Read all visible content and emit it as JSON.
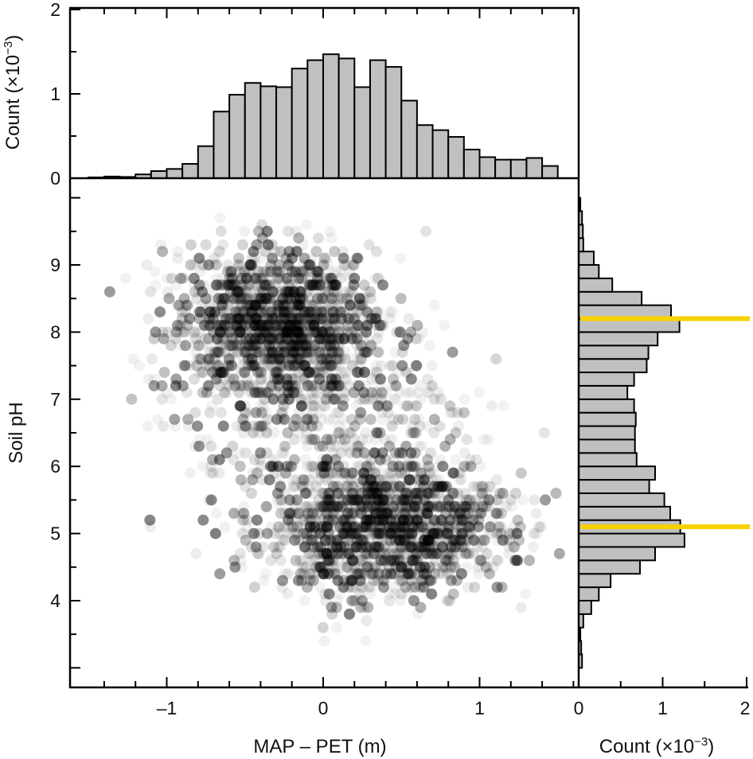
{
  "chart_data": [
    {
      "type": "scatter",
      "title": "",
      "xlabel": "MAP – PET (m)",
      "ylabel": "Soil pH",
      "xlim": [
        -1.62,
        1.63
      ],
      "ylim": [
        2.71,
        10.29
      ],
      "x_ticks": [
        "-1",
        "0",
        "1"
      ],
      "x_tick_values": [
        -1,
        0,
        1
      ],
      "y_ticks": [
        "9",
        "8",
        "7",
        "6",
        "5",
        "4"
      ],
      "y_tick_values": [
        9,
        8,
        7,
        6,
        5,
        4
      ],
      "point_color": "#000000",
      "ph_resolution": 0.1,
      "n_points": 3200,
      "clusters": [
        {
          "x_mean": -0.3,
          "x_sd": 0.32,
          "y_mean": 8.1,
          "y_sd": 0.55,
          "weight": 0.42
        },
        {
          "x_mean": 0.4,
          "x_sd": 0.38,
          "y_mean": 5.1,
          "y_sd": 0.5,
          "weight": 0.42
        },
        {
          "x_mean": 0.05,
          "x_sd": 0.5,
          "y_mean": 6.6,
          "y_sd": 0.9,
          "weight": 0.16
        }
      ]
    },
    {
      "type": "bar",
      "orientation": "vertical",
      "ylabel": "Count (×10⁻³)",
      "ylabel_main": "Count (×10",
      "ylabel_exp": "−3",
      "ylabel_close": ")",
      "ylim": [
        0,
        2
      ],
      "y_ticks": [
        "2",
        "1",
        "0"
      ],
      "y_tick_values": [
        2,
        1,
        0
      ],
      "bin_start": -1.5,
      "bin_width": 0.1,
      "values": [
        0.01,
        0.02,
        0.015,
        0.045,
        0.085,
        0.11,
        0.17,
        0.38,
        0.79,
        0.99,
        1.13,
        1.09,
        1.08,
        1.3,
        1.4,
        1.47,
        1.42,
        1.08,
        1.4,
        1.32,
        0.92,
        0.63,
        0.57,
        0.49,
        0.34,
        0.25,
        0.22,
        0.22,
        0.24,
        0.145
      ],
      "bar_color": "#c0c0c0"
    },
    {
      "type": "bar",
      "orientation": "horizontal",
      "xlabel_main": "Count (×10",
      "xlabel_exp": "−3",
      "xlabel_close": ")",
      "xlim": [
        0,
        2
      ],
      "x_ticks": [
        "0",
        "1",
        "2"
      ],
      "x_tick_values": [
        0,
        1,
        2
      ],
      "bin_start": 3.0,
      "bin_width": 0.2,
      "values": [
        0.04,
        0.03,
        0.02,
        0.055,
        0.15,
        0.24,
        0.38,
        0.73,
        0.91,
        1.26,
        1.21,
        1.09,
        1.02,
        0.84,
        0.91,
        0.69,
        0.67,
        0.67,
        0.68,
        0.66,
        0.58,
        0.66,
        0.81,
        0.83,
        0.94,
        1.2,
        1.1,
        0.75,
        0.4,
        0.24,
        0.18,
        0.055,
        0.05,
        0.04,
        0.02
      ],
      "bar_color": "#c0c0c0",
      "highlight_lines": [
        8.2,
        5.1
      ],
      "highlight_color": "#f7d100"
    }
  ]
}
